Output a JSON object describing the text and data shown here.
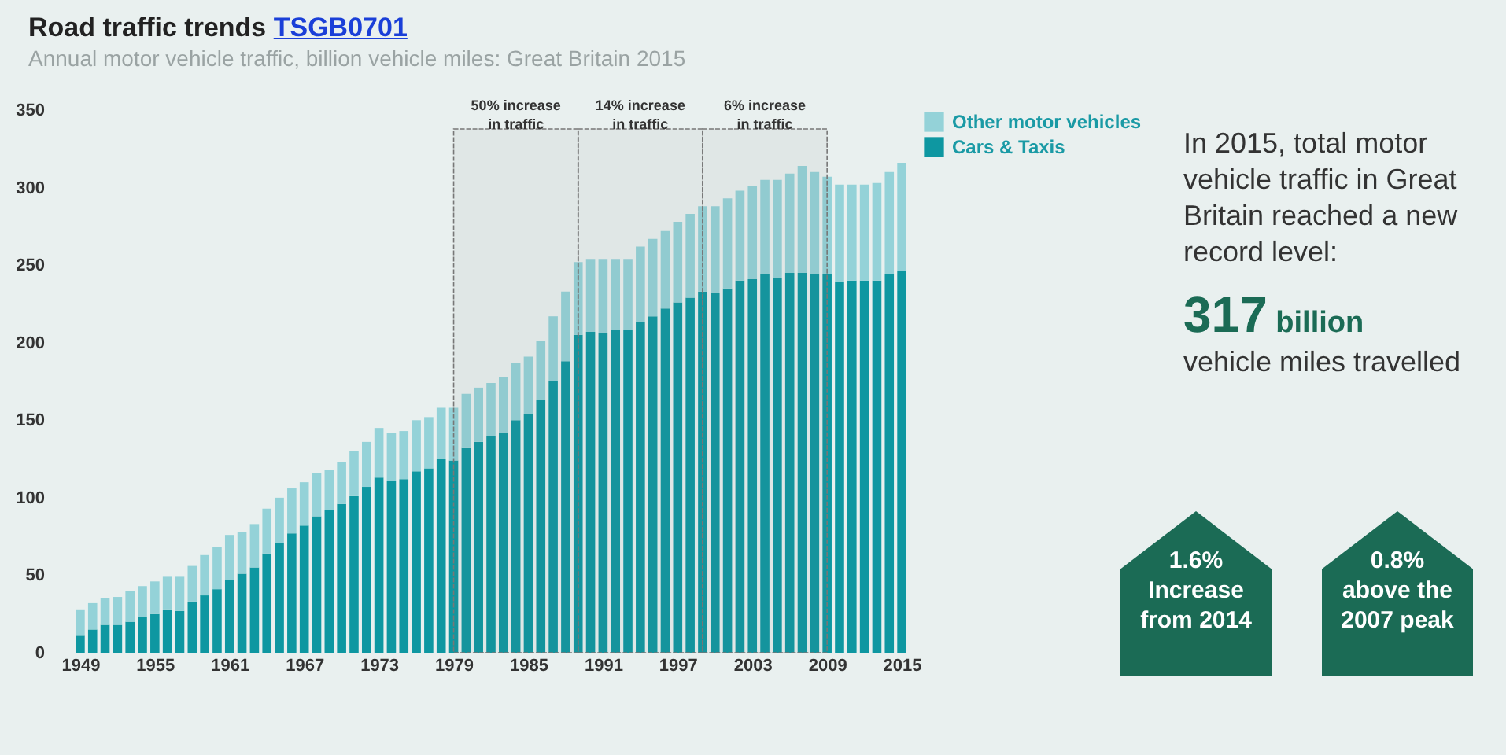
{
  "chart_data": {
    "type": "bar",
    "title": "Road traffic trends TSGB0701",
    "subtitle": "Annual motor vehicle traffic, billion vehicle miles: Great Britain 2015",
    "x": [
      1949,
      1950,
      1951,
      1952,
      1953,
      1954,
      1955,
      1956,
      1957,
      1958,
      1959,
      1960,
      1961,
      1962,
      1963,
      1964,
      1965,
      1966,
      1967,
      1968,
      1969,
      1970,
      1971,
      1972,
      1973,
      1974,
      1975,
      1976,
      1977,
      1978,
      1979,
      1980,
      1981,
      1982,
      1983,
      1984,
      1985,
      1986,
      1987,
      1988,
      1989,
      1990,
      1991,
      1992,
      1993,
      1994,
      1995,
      1996,
      1997,
      1998,
      1999,
      2000,
      2001,
      2002,
      2003,
      2004,
      2005,
      2006,
      2007,
      2008,
      2009,
      2010,
      2011,
      2012,
      2013,
      2014,
      2015
    ],
    "stacked": true,
    "series": [
      {
        "name": "Cars & Taxis",
        "color": "#0e97a1",
        "values": [
          11,
          15,
          18,
          18,
          20,
          23,
          25,
          28,
          27,
          33,
          37,
          41,
          47,
          51,
          55,
          64,
          71,
          77,
          82,
          88,
          92,
          96,
          101,
          107,
          113,
          111,
          112,
          117,
          119,
          125,
          124,
          132,
          136,
          140,
          142,
          150,
          154,
          163,
          175,
          188,
          205,
          207,
          206,
          208,
          208,
          213,
          217,
          222,
          226,
          229,
          233,
          232,
          235,
          240,
          241,
          244,
          242,
          245,
          245,
          244,
          244,
          239,
          240,
          240,
          240,
          244,
          246
        ]
      },
      {
        "name": "Other motor vehicles",
        "color": "#94d2d8",
        "values": [
          17,
          17,
          17,
          18,
          20,
          20,
          21,
          21,
          22,
          23,
          26,
          27,
          29,
          27,
          28,
          29,
          29,
          29,
          28,
          28,
          26,
          27,
          29,
          29,
          32,
          31,
          31,
          33,
          33,
          33,
          34,
          35,
          35,
          34,
          36,
          37,
          37,
          38,
          42,
          45,
          47,
          47,
          48,
          46,
          46,
          49,
          50,
          50,
          52,
          54,
          55,
          56,
          58,
          58,
          60,
          61,
          63,
          64,
          69,
          66,
          63,
          63,
          62,
          62,
          63,
          66,
          70
        ]
      }
    ],
    "xlim": [
      1948.5,
      2015.5
    ],
    "xticks": [
      1949,
      1955,
      1961,
      1967,
      1973,
      1979,
      1985,
      1991,
      1997,
      2003,
      2009,
      2015
    ],
    "ylim": [
      0,
      350
    ],
    "yticks": [
      0,
      50,
      100,
      150,
      200,
      250,
      300,
      350
    ],
    "grid": false,
    "legend": "right",
    "bands": [
      {
        "axis": "x",
        "from": 1979,
        "to": 1989,
        "label": "50% increase in traffic"
      },
      {
        "axis": "x",
        "from": 1989,
        "to": 1999,
        "label": "14% increase in traffic"
      },
      {
        "axis": "x",
        "from": 1999,
        "to": 2009,
        "label": "6% increase in traffic"
      }
    ],
    "annotations": [
      "In 2015, total motor vehicle traffic in Great Britain reached a new record level:",
      "317 billion",
      "vehicle miles travelled",
      "1.6% Increase from 2014",
      "0.8% above the 2007 peak"
    ]
  }
}
